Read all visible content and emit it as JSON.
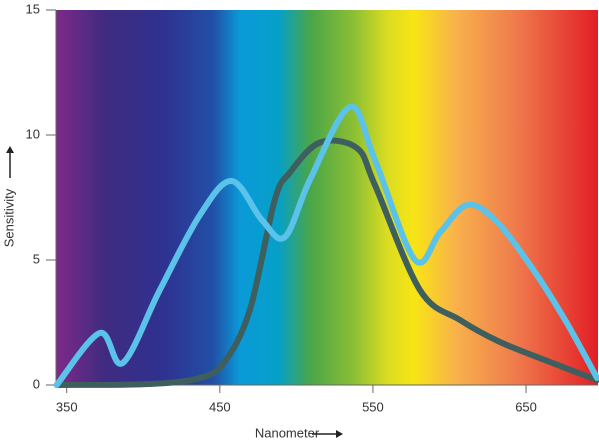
{
  "chart_data": {
    "type": "line",
    "xlabel": "Nanometer",
    "ylabel": "Sensitivity",
    "xlim": [
      343,
      697
    ],
    "xticks": [
      350,
      450,
      550,
      650
    ],
    "ylim": [
      0,
      15
    ],
    "yticks": [
      0,
      5,
      10,
      15
    ],
    "series": [
      {
        "color": "#5bc2ea",
        "x": [
          343.5,
          371.6,
          386.6,
          410.8,
          437,
          457.8,
          477.5,
          492.5,
          508.8,
          535,
          551.3,
          577.5,
          593.8,
          611.4,
          629.7,
          652.6,
          675.5,
          696.4
        ],
        "values": [
          0,
          2.08,
          0.88,
          3.8,
          6.8,
          8.16,
          6.6,
          5.92,
          8.2,
          11.12,
          9.0,
          5.0,
          6.1,
          7.2,
          6.6,
          4.8,
          2.6,
          0.28
        ]
      },
      {
        "color": "#3e5f5e",
        "x": [
          343.5,
          404,
          437,
          453,
          469.6,
          485.9,
          495.8,
          515.4,
          539.5,
          551.3,
          580.7,
          606.9,
          633,
          665.7,
          696.4
        ],
        "values": [
          0,
          0.04,
          0.28,
          0.92,
          3.0,
          7.4,
          8.5,
          9.7,
          9.48,
          8.0,
          3.8,
          2.6,
          1.72,
          0.92,
          0.2
        ]
      }
    ]
  }
}
